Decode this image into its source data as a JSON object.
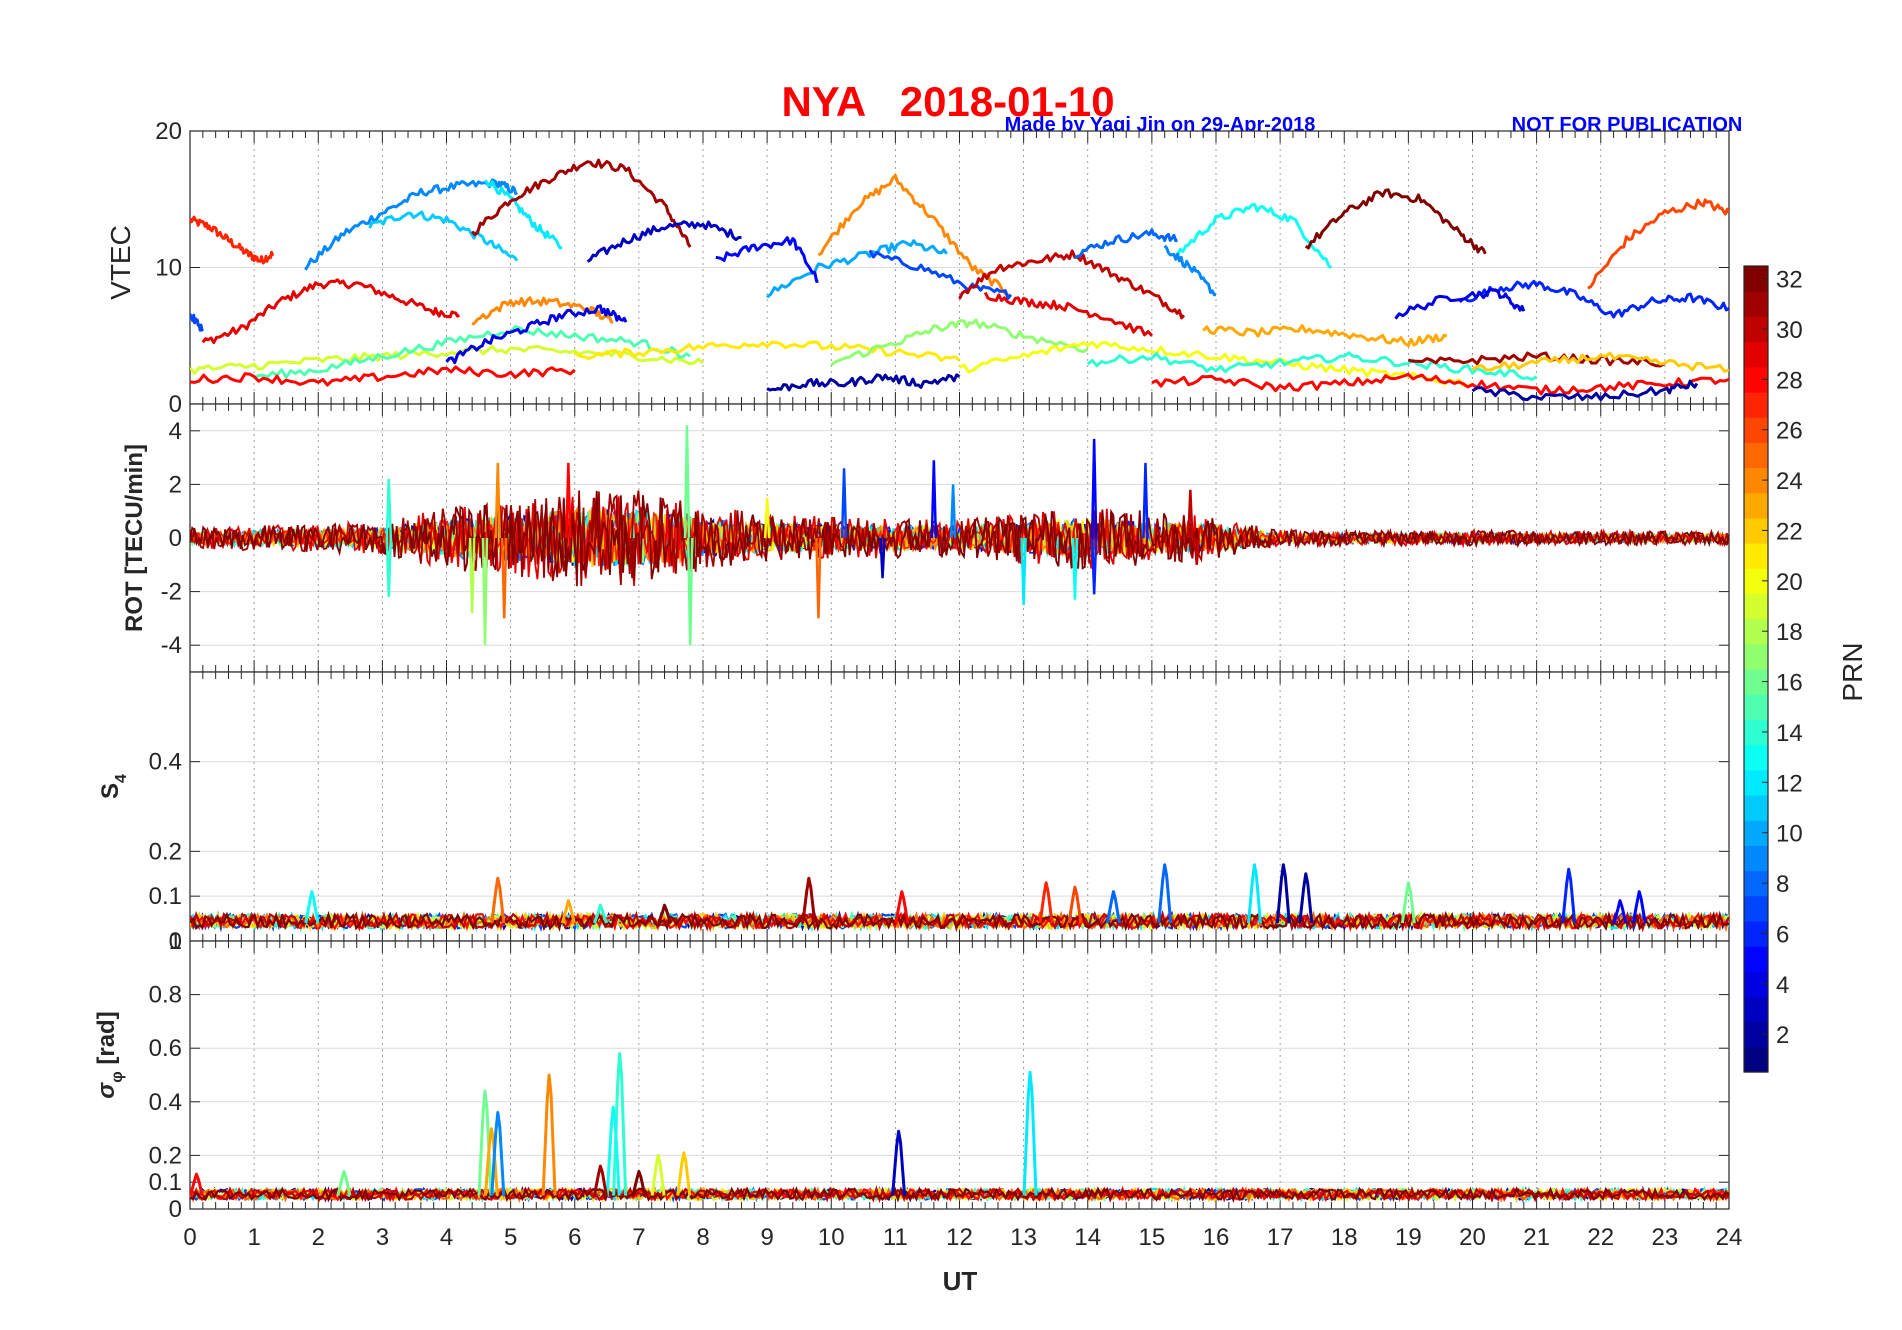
{
  "figure": {
    "title": "NYA   2018-01-10",
    "credit_left": "Made by Yaqi Jin on 29-Apr-2018",
    "credit_right": "NOT FOR PUBLICATION",
    "xlabel": "UT",
    "colorbar_label": "PRN",
    "colorbar_ticks": [
      "2",
      "4",
      "6",
      "8",
      "10",
      "12",
      "14",
      "16",
      "18",
      "20",
      "22",
      "24",
      "26",
      "28",
      "30",
      "32"
    ],
    "xticks": [
      "0",
      "1",
      "2",
      "3",
      "4",
      "5",
      "6",
      "7",
      "8",
      "9",
      "10",
      "11",
      "12",
      "13",
      "14",
      "15",
      "16",
      "17",
      "18",
      "19",
      "20",
      "21",
      "22",
      "23",
      "24"
    ]
  },
  "chart_data": [
    {
      "type": "line",
      "title": "",
      "xlabel": "",
      "ylabel": "VTEC",
      "xlim": [
        0,
        24
      ],
      "ylim": [
        0,
        20
      ],
      "yticks": [
        "0",
        "10",
        "20"
      ],
      "series": [
        {
          "prn": 27,
          "x": [
            0.0,
            0.3,
            0.6,
            0.9,
            1.1,
            1.3
          ],
          "y": [
            13.5,
            13.0,
            12.0,
            11.0,
            10.5,
            11.0
          ]
        },
        {
          "prn": 29,
          "x": [
            0.2,
            0.8,
            1.4,
            2.0,
            2.6,
            3.2,
            3.8,
            4.2
          ],
          "y": [
            4.5,
            5.5,
            7.5,
            8.8,
            8.8,
            7.8,
            6.8,
            6.5
          ]
        },
        {
          "prn": 9,
          "x": [
            1.8,
            2.4,
            3.0,
            3.6,
            4.2,
            4.8,
            5.1
          ],
          "y": [
            10.0,
            12.5,
            14.0,
            15.5,
            16.0,
            16.2,
            15.5
          ]
        },
        {
          "prn": 11,
          "x": [
            2.8,
            3.4,
            4.0,
            4.6,
            5.1
          ],
          "y": [
            13.0,
            14.0,
            13.5,
            12.0,
            10.5
          ]
        },
        {
          "prn": 12,
          "x": [
            4.6,
            5.0,
            5.4,
            5.8
          ],
          "y": [
            16.5,
            15.0,
            13.0,
            11.5
          ]
        },
        {
          "prn": 31,
          "x": [
            4.4,
            5.0,
            5.6,
            6.2,
            6.8,
            7.4,
            7.8
          ],
          "y": [
            12.5,
            15.0,
            16.5,
            17.8,
            17.2,
            14.5,
            11.5
          ]
        },
        {
          "prn": 3,
          "x": [
            6.2,
            6.8,
            7.4,
            8.0,
            8.6
          ],
          "y": [
            10.5,
            12.0,
            13.0,
            13.2,
            12.2
          ]
        },
        {
          "prn": 24,
          "x": [
            9.8,
            10.4,
            11.0,
            11.6,
            12.2,
            12.8
          ],
          "y": [
            11.0,
            14.5,
            16.5,
            13.5,
            10.0,
            8.0
          ]
        },
        {
          "prn": 10,
          "x": [
            9.0,
            9.8,
            10.6,
            11.2,
            11.8
          ],
          "y": [
            8.0,
            10.0,
            11.0,
            11.8,
            11.0
          ]
        },
        {
          "prn": 5,
          "x": [
            8.2,
            8.8,
            9.4,
            9.8
          ],
          "y": [
            10.5,
            11.5,
            12.0,
            9.0
          ]
        },
        {
          "prn": 7,
          "x": [
            10.6,
            11.4,
            12.2,
            12.8
          ],
          "y": [
            11.0,
            10.0,
            8.5,
            8.0
          ]
        },
        {
          "prn": 30,
          "x": [
            12.0,
            12.6,
            13.2,
            13.8,
            14.4,
            15.0,
            15.5
          ],
          "y": [
            8.0,
            10.0,
            10.5,
            11.0,
            9.5,
            8.0,
            6.5
          ]
        },
        {
          "prn": 8,
          "x": [
            13.8,
            14.4,
            15.0,
            15.4
          ],
          "y": [
            11.0,
            12.0,
            12.5,
            12.0
          ]
        },
        {
          "prn": 13,
          "x": [
            15.4,
            16.0,
            16.6,
            17.2,
            17.8
          ],
          "y": [
            11.0,
            13.5,
            14.5,
            13.5,
            10.0
          ]
        },
        {
          "prn": 9,
          "x": [
            15.2,
            15.6,
            16.0
          ],
          "y": [
            11.5,
            10.0,
            8.0
          ]
        },
        {
          "prn": 32,
          "x": [
            17.4,
            18.0,
            18.6,
            19.2,
            19.8,
            20.2
          ],
          "y": [
            11.5,
            14.0,
            15.5,
            15.0,
            12.5,
            11.0
          ]
        },
        {
          "prn": 26,
          "x": [
            21.8,
            22.4,
            23.0,
            23.6,
            24.0
          ],
          "y": [
            8.5,
            12.0,
            14.0,
            14.8,
            14.0
          ]
        },
        {
          "prn": 6,
          "x": [
            19.8,
            20.4,
            21.0,
            21.6,
            22.2,
            22.8,
            23.4,
            24.0
          ],
          "y": [
            7.5,
            8.5,
            8.8,
            8.0,
            6.5,
            7.5,
            7.8,
            7.0
          ]
        },
        {
          "prn": 4,
          "x": [
            18.8,
            19.6,
            20.4,
            20.8
          ],
          "y": [
            6.5,
            7.8,
            8.2,
            6.8
          ]
        },
        {
          "prn": 24,
          "x": [
            4.4,
            5.0,
            5.6,
            6.2,
            6.6
          ],
          "y": [
            6.0,
            7.5,
            7.5,
            7.0,
            6.0
          ]
        },
        {
          "prn": 29,
          "x": [
            12.4,
            13.0,
            13.6,
            14.2,
            15.0
          ],
          "y": [
            8.0,
            7.5,
            7.2,
            6.5,
            5.0
          ]
        },
        {
          "prn": 23,
          "x": [
            15.8,
            16.6,
            17.4,
            18.2,
            19.0,
            19.6
          ],
          "y": [
            5.5,
            5.2,
            5.5,
            5.0,
            4.5,
            5.0
          ]
        },
        {
          "prn": 7,
          "x": [
            0.0,
            0.2
          ],
          "y": [
            6.5,
            5.5
          ]
        },
        {
          "prn": 19,
          "x": [
            0.0,
            1.0,
            2.0,
            3.0,
            4.0,
            5.0,
            6.0,
            7.0,
            8.0
          ],
          "y": [
            2.5,
            2.8,
            3.2,
            3.5,
            3.8,
            4.0,
            3.8,
            3.5,
            3.0
          ]
        },
        {
          "prn": 15,
          "x": [
            1.0,
            2.0,
            3.0,
            4.0,
            5.0,
            6.0,
            7.0,
            7.8
          ],
          "y": [
            2.0,
            2.5,
            3.5,
            4.5,
            5.5,
            5.0,
            4.5,
            3.5
          ]
        },
        {
          "prn": 4,
          "x": [
            4.0,
            4.6,
            5.2,
            5.8,
            6.4,
            6.8
          ],
          "y": [
            3.0,
            4.5,
            5.5,
            6.5,
            7.0,
            6.0
          ]
        },
        {
          "prn": 28,
          "x": [
            0.0,
            1.0,
            2.0,
            3.0,
            4.0,
            5.0,
            6.0
          ],
          "y": [
            1.8,
            2.0,
            1.5,
            2.0,
            2.5,
            2.2,
            2.5
          ]
        },
        {
          "prn": 21,
          "x": [
            6.0,
            7.0,
            8.0,
            9.0,
            10.0,
            11.0,
            12.0
          ],
          "y": [
            3.5,
            3.8,
            4.2,
            4.5,
            4.2,
            3.8,
            3.2
          ]
        },
        {
          "prn": 17,
          "x": [
            10.0,
            11.0,
            11.6,
            12.2,
            13.0,
            14.0
          ],
          "y": [
            3.0,
            4.5,
            5.5,
            6.0,
            5.0,
            4.0
          ]
        },
        {
          "prn": 2,
          "x": [
            9.0,
            9.6,
            10.2,
            10.8,
            11.4,
            12.0
          ],
          "y": [
            1.0,
            1.5,
            1.5,
            2.0,
            1.5,
            2.0
          ]
        },
        {
          "prn": 20,
          "x": [
            12.0,
            13.0,
            14.0,
            15.0,
            16.0,
            17.0,
            18.0,
            19.0,
            20.0
          ],
          "y": [
            2.5,
            3.5,
            4.5,
            4.0,
            3.5,
            3.0,
            2.5,
            2.0,
            1.5
          ]
        },
        {
          "prn": 14,
          "x": [
            14.0,
            15.0,
            16.0,
            17.0,
            18.0,
            19.0,
            20.0,
            21.0
          ],
          "y": [
            3.0,
            3.5,
            2.5,
            3.0,
            3.5,
            3.0,
            2.5,
            2.0
          ]
        },
        {
          "prn": 28,
          "x": [
            15.0,
            16.0,
            17.0,
            18.0,
            19.0,
            20.0,
            21.0,
            22.0,
            23.0,
            24.0
          ],
          "y": [
            1.5,
            1.8,
            1.2,
            1.5,
            2.0,
            1.5,
            1.0,
            1.2,
            1.5,
            1.8
          ]
        },
        {
          "prn": 31,
          "x": [
            19.0,
            20.0,
            21.0,
            22.0,
            23.0
          ],
          "y": [
            3.0,
            3.2,
            3.5,
            3.2,
            3.0
          ]
        },
        {
          "prn": 2,
          "x": [
            20.0,
            21.0,
            22.0,
            23.0,
            23.5
          ],
          "y": [
            1.0,
            0.5,
            0.5,
            1.0,
            1.5
          ]
        },
        {
          "prn": 22,
          "x": [
            20.0,
            21.0,
            22.0,
            23.0,
            24.0
          ],
          "y": [
            2.5,
            3.0,
            3.5,
            3.0,
            2.5
          ]
        }
      ]
    },
    {
      "type": "line",
      "title": "",
      "xlabel": "",
      "ylabel": "ROT [TECU/min]",
      "xlim": [
        0,
        24
      ],
      "ylim": [
        -5,
        5
      ],
      "yticks": [
        "-4",
        "-2",
        "0",
        "2",
        "4"
      ],
      "spikes": [
        {
          "prn": 16,
          "x": 7.75,
          "y": 4.2
        },
        {
          "prn": 16,
          "x": 7.8,
          "y": -4.0
        },
        {
          "prn": 17,
          "x": 4.6,
          "y": -4.0
        },
        {
          "prn": 18,
          "x": 4.4,
          "y": -2.8
        },
        {
          "prn": 24,
          "x": 4.8,
          "y": 2.8
        },
        {
          "prn": 25,
          "x": 4.9,
          "y": -3.0
        },
        {
          "prn": 28,
          "x": 5.9,
          "y": 2.8
        },
        {
          "prn": 25,
          "x": 9.8,
          "y": -3.0
        },
        {
          "prn": 7,
          "x": 10.2,
          "y": 2.6
        },
        {
          "prn": 5,
          "x": 11.6,
          "y": 2.9
        },
        {
          "prn": 5,
          "x": 14.1,
          "y": 3.7
        },
        {
          "prn": 12,
          "x": 13.0,
          "y": -2.5
        },
        {
          "prn": 13,
          "x": 13.8,
          "y": -2.3
        },
        {
          "prn": 6,
          "x": 14.1,
          "y": -2.1
        },
        {
          "prn": 6,
          "x": 14.9,
          "y": 2.8
        },
        {
          "prn": 14,
          "x": 3.1,
          "y": 2.2
        },
        {
          "prn": 14,
          "x": 3.1,
          "y": -2.2
        },
        {
          "prn": 9,
          "x": 11.9,
          "y": 2.0
        },
        {
          "prn": 30,
          "x": 15.6,
          "y": 1.8
        },
        {
          "prn": 30,
          "x": 15.7,
          "y": -1.0
        },
        {
          "prn": 31,
          "x": 6.3,
          "y": 1.5
        },
        {
          "prn": 31,
          "x": 6.9,
          "y": -1.5
        },
        {
          "prn": 20,
          "x": 9.0,
          "y": 1.5
        },
        {
          "prn": 3,
          "x": 10.8,
          "y": -1.5
        }
      ],
      "noise_envelope": [
        [
          0,
          0.4
        ],
        [
          3,
          0.6
        ],
        [
          4,
          1.2
        ],
        [
          5,
          1.4
        ],
        [
          6,
          1.8
        ],
        [
          7,
          1.8
        ],
        [
          8,
          1.2
        ],
        [
          9,
          0.9
        ],
        [
          10,
          0.8
        ],
        [
          12,
          0.7
        ],
        [
          13,
          1.0
        ],
        [
          14,
          1.2
        ],
        [
          15,
          1.0
        ],
        [
          16,
          0.8
        ],
        [
          17,
          0.3
        ],
        [
          24,
          0.25
        ]
      ]
    },
    {
      "type": "line",
      "title": "",
      "xlabel": "",
      "ylabel": "S4",
      "ylabel_main": "S",
      "ylabel_sub": "4",
      "xlim": [
        0,
        24
      ],
      "ylim": [
        0,
        0.6
      ],
      "yticks": [
        "0",
        "0.1",
        "0.2",
        "0.4"
      ],
      "extra_tick": "1",
      "baseline": 0.04,
      "spikes": [
        {
          "prn": 13,
          "x": 1.9,
          "y": 0.11
        },
        {
          "prn": 25,
          "x": 4.8,
          "y": 0.14
        },
        {
          "prn": 23,
          "x": 5.9,
          "y": 0.09
        },
        {
          "prn": 31,
          "x": 9.65,
          "y": 0.14
        },
        {
          "prn": 28,
          "x": 11.1,
          "y": 0.11
        },
        {
          "prn": 27,
          "x": 13.35,
          "y": 0.13
        },
        {
          "prn": 26,
          "x": 13.8,
          "y": 0.12
        },
        {
          "prn": 8,
          "x": 14.4,
          "y": 0.11
        },
        {
          "prn": 8,
          "x": 15.2,
          "y": 0.17
        },
        {
          "prn": 12,
          "x": 16.6,
          "y": 0.17
        },
        {
          "prn": 2,
          "x": 17.05,
          "y": 0.17
        },
        {
          "prn": 2,
          "x": 17.4,
          "y": 0.15
        },
        {
          "prn": 16,
          "x": 19.0,
          "y": 0.13
        },
        {
          "prn": 6,
          "x": 21.5,
          "y": 0.16
        },
        {
          "prn": 5,
          "x": 22.6,
          "y": 0.11
        },
        {
          "prn": 5,
          "x": 22.3,
          "y": 0.09
        },
        {
          "prn": 14,
          "x": 6.4,
          "y": 0.08
        },
        {
          "prn": 32,
          "x": 7.4,
          "y": 0.08
        }
      ]
    },
    {
      "type": "line",
      "title": "",
      "xlabel": "UT",
      "ylabel": "σφ [rad]",
      "ylabel_main": "σ",
      "ylabel_sub": "φ",
      "ylabel_unit": " [rad]",
      "xlim": [
        0,
        24
      ],
      "ylim": [
        0,
        1.0
      ],
      "yticks": [
        "0",
        "0.1",
        "0.2",
        "0.4",
        "0.6",
        "0.8"
      ],
      "baseline": 0.05,
      "spikes": [
        {
          "prn": 16,
          "x": 4.6,
          "y": 0.44
        },
        {
          "prn": 23,
          "x": 4.7,
          "y": 0.3
        },
        {
          "prn": 9,
          "x": 4.8,
          "y": 0.36
        },
        {
          "prn": 24,
          "x": 5.6,
          "y": 0.5
        },
        {
          "prn": 14,
          "x": 6.7,
          "y": 0.58
        },
        {
          "prn": 13,
          "x": 6.6,
          "y": 0.38
        },
        {
          "prn": 3,
          "x": 11.05,
          "y": 0.29
        },
        {
          "prn": 12,
          "x": 13.1,
          "y": 0.51
        },
        {
          "prn": 19,
          "x": 7.3,
          "y": 0.2
        },
        {
          "prn": 22,
          "x": 7.7,
          "y": 0.21
        },
        {
          "prn": 28,
          "x": 0.1,
          "y": 0.13
        },
        {
          "prn": 16,
          "x": 2.4,
          "y": 0.14
        },
        {
          "prn": 31,
          "x": 6.4,
          "y": 0.16
        },
        {
          "prn": 32,
          "x": 7.0,
          "y": 0.14
        }
      ]
    }
  ]
}
